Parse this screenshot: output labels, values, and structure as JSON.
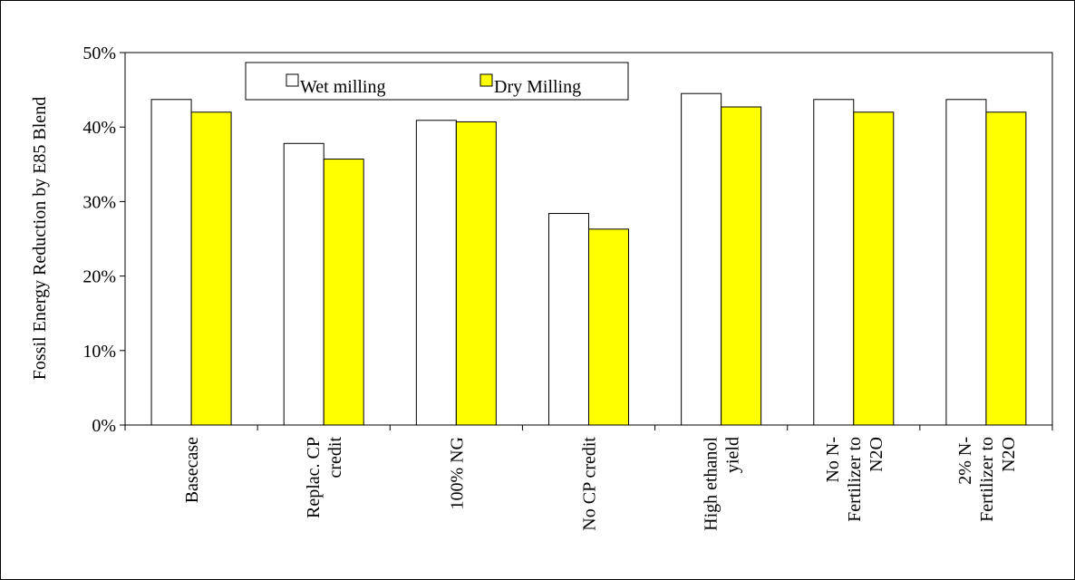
{
  "chart_data": {
    "type": "bar",
    "title": "",
    "xlabel": "",
    "ylabel": "Fossil Energy Reduction by E85 Blend",
    "ylim": [
      0,
      0.5
    ],
    "ytick_values": [
      0,
      0.1,
      0.2,
      0.3,
      0.4,
      0.5
    ],
    "ytick_labels": [
      "0%",
      "10%",
      "20%",
      "30%",
      "40%",
      "50%"
    ],
    "grid": false,
    "legend_position": "top-left",
    "categories": [
      [
        "Basecase"
      ],
      [
        "Replac. CP",
        "credit"
      ],
      [
        "100% NG"
      ],
      [
        "No CP credit"
      ],
      [
        "High ethanol",
        "yield"
      ],
      [
        "No N-",
        "Fertilizer to",
        "N2O"
      ],
      [
        "2% N-",
        "Fertilizer to",
        "N2O"
      ]
    ],
    "series": [
      {
        "name": "Wet milling",
        "color": "#ffffff",
        "values": [
          0.437,
          0.378,
          0.409,
          0.284,
          0.445,
          0.437,
          0.437
        ]
      },
      {
        "name": "Dry Milling",
        "color": "#ffff00",
        "values": [
          0.42,
          0.357,
          0.407,
          0.263,
          0.427,
          0.42,
          0.42
        ]
      }
    ]
  }
}
